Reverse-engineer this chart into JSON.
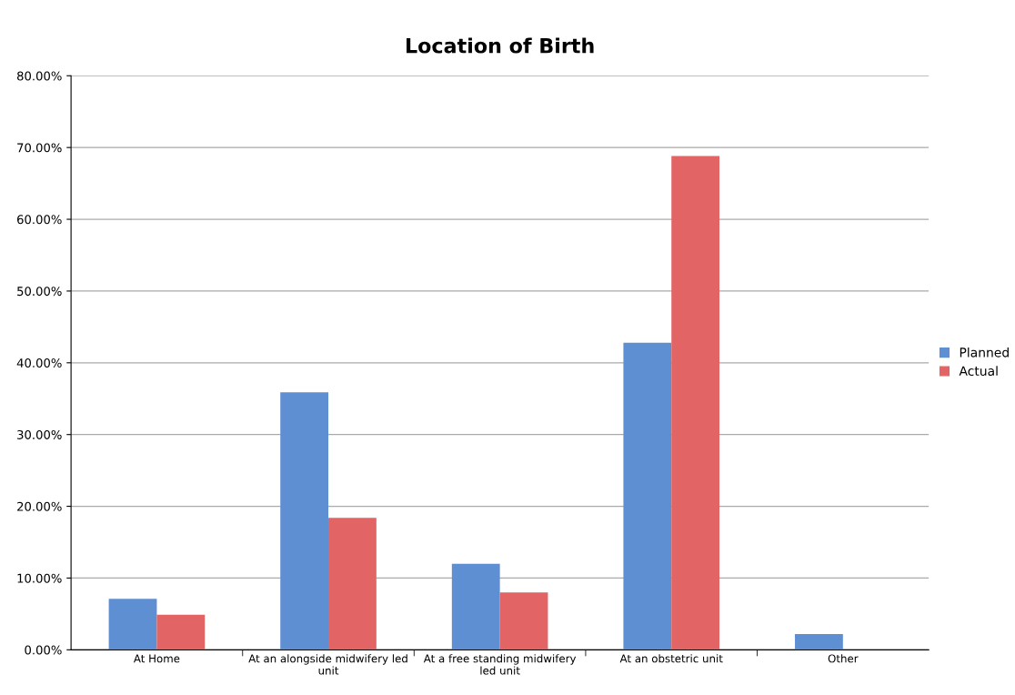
{
  "chart_data": {
    "type": "bar",
    "title": "Location of Birth",
    "categories": [
      "At Home",
      "At an alongside midwifery led\nunit",
      "At a free standing midwifery\nled unit",
      "At an obstetric unit",
      "Other"
    ],
    "series": [
      {
        "name": "Planned",
        "color": "#5f8fd3",
        "values": [
          7.1,
          35.9,
          12.0,
          42.8,
          2.2
        ]
      },
      {
        "name": "Actual",
        "color": "#e26464",
        "values": [
          4.9,
          18.4,
          8.0,
          68.8,
          0
        ]
      }
    ],
    "ylim": [
      0,
      80
    ],
    "yticks": [
      {
        "value": 0,
        "label": "0.00%"
      },
      {
        "value": 10,
        "label": "10.00%"
      },
      {
        "value": 20,
        "label": "20.00%"
      },
      {
        "value": 30,
        "label": "30.00%"
      },
      {
        "value": 40,
        "label": "40.00%"
      },
      {
        "value": 50,
        "label": "50.00%"
      },
      {
        "value": 60,
        "label": "60.00%"
      },
      {
        "value": 70,
        "label": "70.00%"
      },
      {
        "value": 80,
        "label": "80.00%"
      }
    ],
    "grid": "y",
    "legend": "right"
  }
}
